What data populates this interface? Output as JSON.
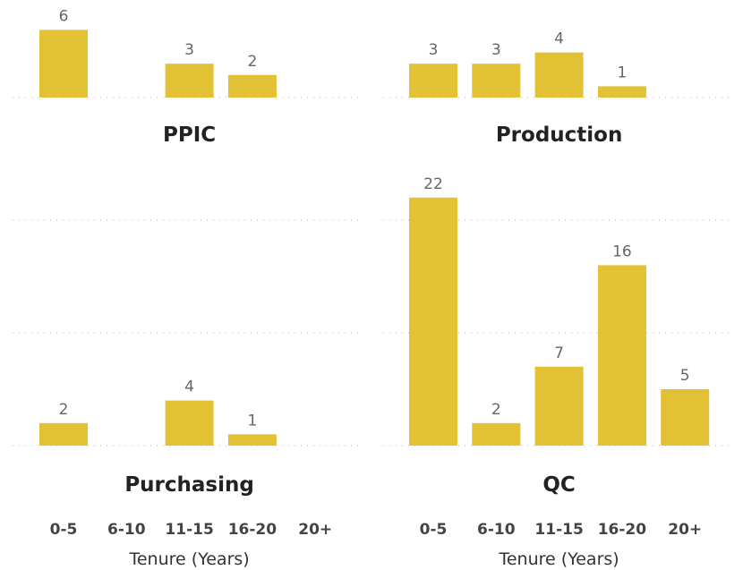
{
  "colors": {
    "bar": "#E2C234",
    "grid": "#c8c8c8"
  },
  "chart_data": {
    "type": "bar",
    "categories": [
      "0-5",
      "6-10",
      "11-15",
      "16-20",
      "20+"
    ],
    "xlabel": "Tenure (Years)",
    "grid": true,
    "panels": [
      {
        "title": "PPIC",
        "values": [
          6,
          0,
          3,
          2,
          0
        ],
        "labels": [
          "6",
          "",
          "3",
          "2",
          ""
        ]
      },
      {
        "title": "Production",
        "values": [
          3,
          3,
          4,
          1,
          0
        ],
        "labels": [
          "3",
          "3",
          "4",
          "1",
          ""
        ]
      },
      {
        "title": "Purchasing",
        "values": [
          2,
          0,
          4,
          1,
          0
        ],
        "labels": [
          "2",
          "",
          "4",
          "1",
          ""
        ]
      },
      {
        "title": "QC",
        "values": [
          22,
          2,
          7,
          16,
          5
        ],
        "labels": [
          "22",
          "2",
          "7",
          "16",
          "5"
        ]
      }
    ]
  }
}
